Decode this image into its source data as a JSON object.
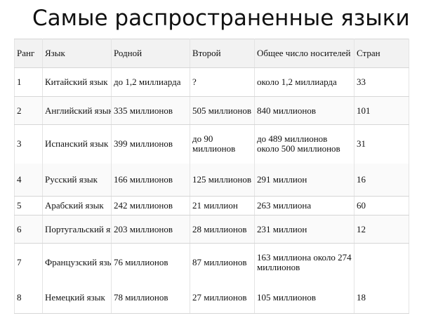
{
  "header": {
    "title": "Самые распространенные языки"
  },
  "table": {
    "columns": [
      "Ранг",
      "Язык",
      "Родной",
      "Второй",
      "Общее число носителей",
      "Стран"
    ],
    "rows": [
      [
        "1",
        "Китайский язык",
        "до 1,2 миллиарда",
        "?",
        "около 1,2 миллиарда",
        "33"
      ],
      [
        "2",
        "Английский язык",
        "335 миллионов",
        "505 миллионов",
        "840 миллионов",
        "101"
      ],
      [
        "3",
        "Испанский язык",
        "399 миллионов",
        "до 90 миллионов",
        "до 489 миллионов около 500 миллионов",
        "31"
      ],
      [
        "4",
        "Русский язык",
        "166 миллионов",
        "125 миллионов",
        "291 миллион",
        "16"
      ],
      [
        "5",
        "Арабский язык",
        "242 миллионов",
        "21 миллион",
        "263 миллиона",
        "60"
      ],
      [
        "6",
        "Португальский язык",
        "203 миллионов",
        "28 миллионов",
        "231 миллион",
        "12"
      ],
      [
        "7",
        "Французский язык",
        "76 миллионов",
        "87 миллионов",
        "163 миллиона около 274 миллионов",
        null
      ],
      [
        "8",
        "Немецкий язык",
        "78 миллионов",
        "27 миллионов",
        "105 миллионов",
        "18"
      ]
    ]
  }
}
